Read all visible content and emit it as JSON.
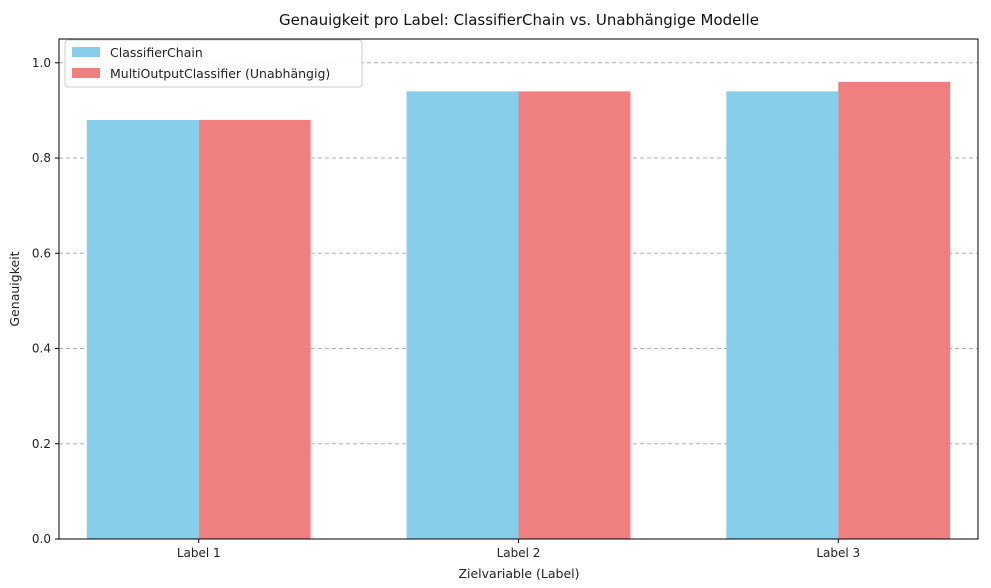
{
  "chart_data": {
    "type": "bar",
    "title": "Genauigkeit pro Label: ClassifierChain vs. Unabhängige Modelle",
    "xlabel": "Zielvariable (Label)",
    "ylabel": "Genauigkeit",
    "categories": [
      "Label 1",
      "Label 2",
      "Label 3"
    ],
    "series": [
      {
        "name": "ClassifierChain",
        "color": "#87CEEB",
        "values": [
          0.88,
          0.94,
          0.94
        ]
      },
      {
        "name": "MultiOutputClassifier (Unabhängig)",
        "color": "#F08080",
        "values": [
          0.88,
          0.94,
          0.96
        ]
      }
    ],
    "ylim": [
      0,
      1.05
    ],
    "yticks": [
      "0.0",
      "0.2",
      "0.4",
      "0.6",
      "0.8",
      "1.0"
    ],
    "grid": "y-dashed",
    "legend_position": "top-left"
  }
}
